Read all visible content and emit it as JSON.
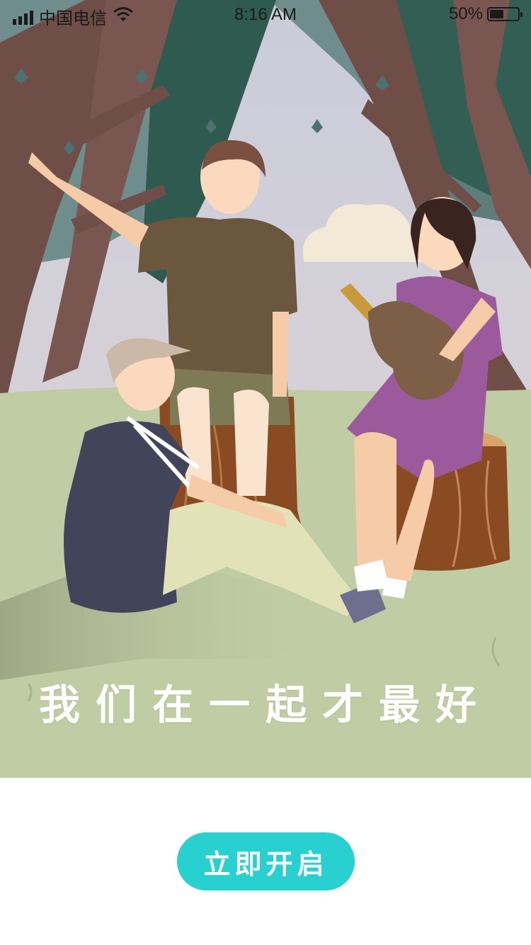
{
  "status_bar": {
    "carrier": "中国电信",
    "time": "8:16 AM",
    "battery": "50%",
    "battery_level": 0.5,
    "icons": [
      "signal-icon",
      "wifi-icon",
      "battery-icon"
    ]
  },
  "illustration": {
    "scene": "campfire-friends-illustration"
  },
  "slogan": "我们在一起才最好",
  "start_button": {
    "label": "立即开启",
    "color": "#29d0d0"
  },
  "colors": {
    "grass": "#c0cca3",
    "sky": "#d8d4dd",
    "tree": "#6e4e46",
    "foliage": "#2f5a50",
    "background": "#ffffff"
  }
}
